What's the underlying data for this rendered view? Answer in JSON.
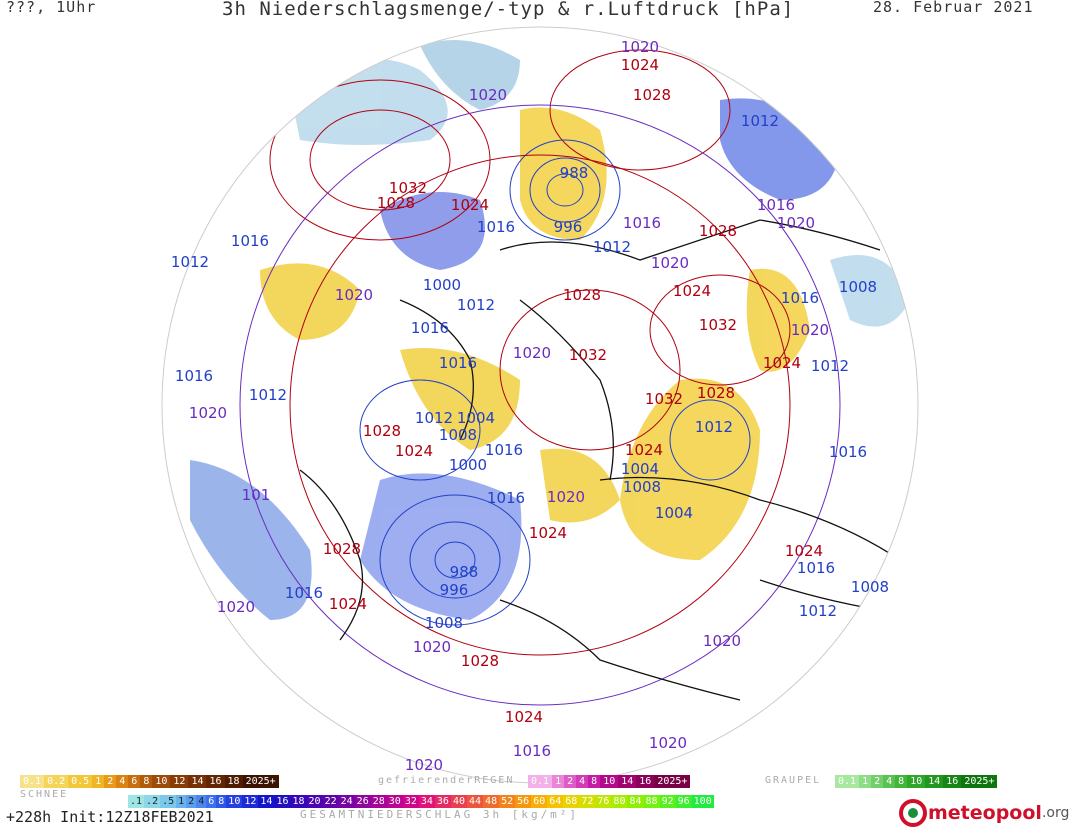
{
  "header": {
    "left": "???, 1Uhr",
    "title": "3h Niederschlagsmenge/-typ & r.Luftdruck [hPa]",
    "date": "28. Februar 2021"
  },
  "map": {
    "pressure_labels": [
      {
        "t": "1020",
        "c": "violet"
      },
      {
        "t": "1024",
        "c": "red"
      },
      {
        "t": "1028",
        "c": "red"
      },
      {
        "t": "1020",
        "c": "violet"
      },
      {
        "t": "1012",
        "c": "blue"
      },
      {
        "t": "988",
        "c": "blue"
      },
      {
        "t": "996",
        "c": "blue"
      },
      {
        "t": "1032",
        "c": "red"
      },
      {
        "t": "1028",
        "c": "red"
      },
      {
        "t": "1024",
        "c": "red"
      },
      {
        "t": "1016",
        "c": "blue"
      },
      {
        "t": "1016",
        "c": "violet"
      },
      {
        "t": "1012",
        "c": "blue"
      },
      {
        "t": "1016",
        "c": "violet"
      },
      {
        "t": "1020",
        "c": "violet"
      },
      {
        "t": "1028",
        "c": "red"
      },
      {
        "t": "1016",
        "c": "blue"
      },
      {
        "t": "1012",
        "c": "blue"
      },
      {
        "t": "1020",
        "c": "violet"
      },
      {
        "t": "1000",
        "c": "blue"
      },
      {
        "t": "1020",
        "c": "violet"
      },
      {
        "t": "1012",
        "c": "blue"
      },
      {
        "t": "1024",
        "c": "red"
      },
      {
        "t": "1028",
        "c": "red"
      },
      {
        "t": "1008",
        "c": "blue"
      },
      {
        "t": "1016",
        "c": "blue"
      },
      {
        "t": "1020",
        "c": "violet"
      },
      {
        "t": "1032",
        "c": "red"
      },
      {
        "t": "1016",
        "c": "blue"
      },
      {
        "t": "1020",
        "c": "violet"
      },
      {
        "t": "1032",
        "c": "red"
      },
      {
        "t": "1024",
        "c": "red"
      },
      {
        "t": "1012",
        "c": "blue"
      },
      {
        "t": "1016",
        "c": "blue"
      },
      {
        "t": "1016",
        "c": "blue"
      },
      {
        "t": "1020",
        "c": "violet"
      },
      {
        "t": "1012",
        "c": "blue"
      },
      {
        "t": "1032",
        "c": "red"
      },
      {
        "t": "1028",
        "c": "red"
      },
      {
        "t": "1012",
        "c": "blue"
      },
      {
        "t": "1004",
        "c": "blue"
      },
      {
        "t": "1028",
        "c": "red"
      },
      {
        "t": "1008",
        "c": "blue"
      },
      {
        "t": "1024",
        "c": "red"
      },
      {
        "t": "1012",
        "c": "blue"
      },
      {
        "t": "1000",
        "c": "blue"
      },
      {
        "t": "1016",
        "c": "blue"
      },
      {
        "t": "1024",
        "c": "red"
      },
      {
        "t": "1016",
        "c": "blue"
      },
      {
        "t": "1004",
        "c": "blue"
      },
      {
        "t": "1016",
        "c": "blue"
      },
      {
        "t": "1020",
        "c": "violet"
      },
      {
        "t": "1008",
        "c": "blue"
      },
      {
        "t": "1004",
        "c": "blue"
      },
      {
        "t": "1024",
        "c": "red"
      },
      {
        "t": "1028",
        "c": "red"
      },
      {
        "t": "1024",
        "c": "red"
      },
      {
        "t": "988",
        "c": "blue"
      },
      {
        "t": "996",
        "c": "blue"
      },
      {
        "t": "1020",
        "c": "violet"
      },
      {
        "t": "1016",
        "c": "blue"
      },
      {
        "t": "1024",
        "c": "red"
      },
      {
        "t": "1016",
        "c": "blue"
      },
      {
        "t": "1008",
        "c": "blue"
      },
      {
        "t": "1008",
        "c": "blue"
      },
      {
        "t": "1012",
        "c": "blue"
      },
      {
        "t": "1020",
        "c": "violet"
      },
      {
        "t": "1020",
        "c": "violet"
      },
      {
        "t": "1028",
        "c": "red"
      },
      {
        "t": "1024",
        "c": "red"
      },
      {
        "t": "1020",
        "c": "violet"
      },
      {
        "t": "1016",
        "c": "violet"
      },
      {
        "t": "1020",
        "c": "violet"
      },
      {
        "t": "101",
        "c": "violet"
      }
    ]
  },
  "legend": {
    "schnee_title": "SCHNEE",
    "schnee": [
      "0.1",
      "0.2",
      "0.5",
      "1",
      "2",
      "4",
      "6",
      "8",
      "10",
      "12",
      "14",
      "16",
      "18",
      "2025+"
    ],
    "regen_title": "gefrierenderREGEN",
    "regen": [
      "0.1",
      "1",
      "2",
      "4",
      "8",
      "10",
      "14",
      "16",
      "2025+"
    ],
    "graupel_title": "GRAUPEL",
    "graupel": [
      "0.1",
      "1",
      "2",
      "4",
      "8",
      "10",
      "14",
      "16",
      "2025+"
    ],
    "gesamt": [
      ".1",
      ".2",
      ".5",
      "1",
      "2",
      "4",
      "6",
      "8",
      "10",
      "12",
      "14",
      "16",
      "18",
      "20",
      "22",
      "24",
      "26",
      "28",
      "30",
      "32",
      "34",
      "36",
      "40",
      "44",
      "48",
      "52",
      "56",
      "60",
      "64",
      "68",
      "72",
      "76",
      "80",
      "84",
      "88",
      "92",
      "96",
      "100"
    ],
    "gesamt_title": "GESAMTNIEDERSCHLAG 3h [kg/m²]"
  },
  "footer": {
    "run": "+228h  Init:12Z18FEB2021"
  },
  "logo": {
    "name": "meteopool",
    "tld": ".org"
  },
  "colors": {
    "red": "#b00010",
    "blue": "#2240c8",
    "violet": "#6a2cc0"
  }
}
